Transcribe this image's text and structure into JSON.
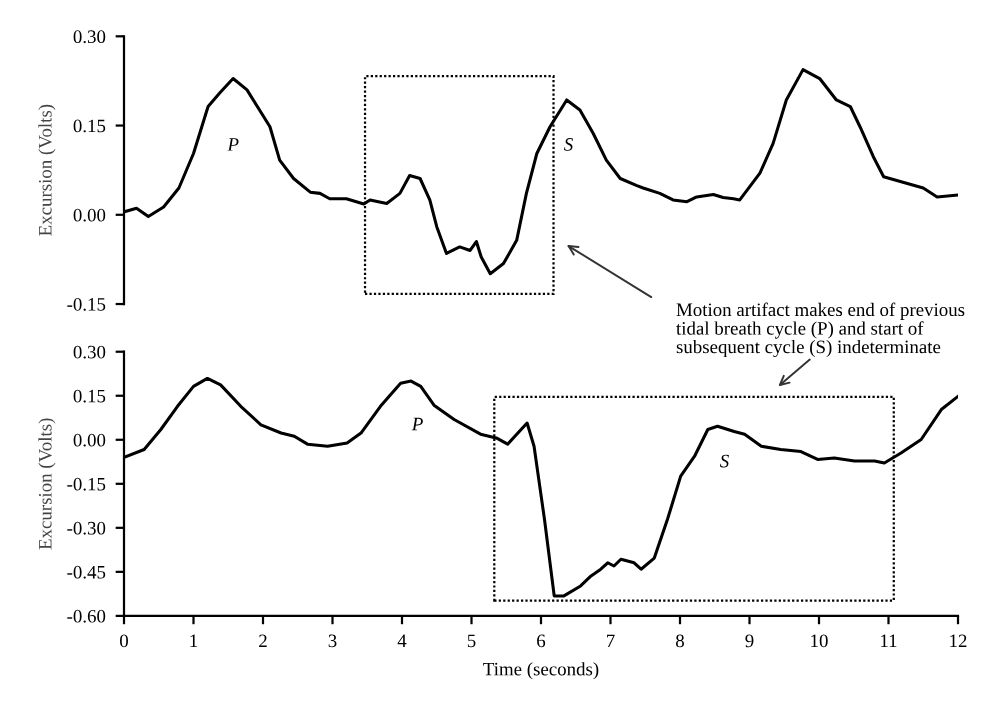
{
  "chart_data": [
    {
      "type": "line",
      "ylabel": "Excursion (Volts)",
      "xlim": [
        0,
        12
      ],
      "ylim": [
        -0.15,
        0.3
      ],
      "yticks": [
        {
          "value": -0.15,
          "label": "-0.15"
        },
        {
          "value": 0,
          "label": "0.00"
        },
        {
          "value": 0.15,
          "label": "0.15"
        },
        {
          "value": 0.3,
          "label": "0.30"
        }
      ],
      "tick_labels": "y",
      "grid": false,
      "marker": "none",
      "line_style": "solid",
      "annotations": [
        "P",
        "S",
        "Motion artifact makes end of previous tidal breath cycle (P) and start of subsequent cycle (S) indeterminate"
      ],
      "series": [
        {
          "color": "#000000",
          "x": [
            0,
            0.18,
            0.35,
            0.57,
            0.79,
            1.0,
            1.21,
            1.38,
            1.57,
            1.77,
            2.1,
            2.24,
            2.44,
            2.68,
            2.82,
            2.96,
            3.2,
            3.45,
            3.54,
            3.78,
            3.97,
            4.11,
            4.26,
            4.4,
            4.5,
            4.64,
            4.83,
            4.98,
            5.07,
            5.14,
            5.27,
            5.46,
            5.65,
            5.79,
            5.94,
            6.13,
            6.37,
            6.56,
            6.75,
            6.94,
            7.14,
            7.38,
            7.47,
            7.71,
            7.9,
            8.1,
            8.24,
            8.48,
            8.62,
            8.77,
            8.86,
            9.15,
            9.34,
            9.53,
            9.77,
            10.01,
            10.25,
            10.45,
            10.59,
            10.78,
            10.93,
            11.17,
            11.5,
            11.7,
            11.98
          ],
          "values": [
            0.005,
            0.011,
            -0.003,
            0.013,
            0.045,
            0.103,
            0.182,
            0.205,
            0.229,
            0.21,
            0.148,
            0.092,
            0.061,
            0.038,
            0.036,
            0.027,
            0.027,
            0.018,
            0.025,
            0.019,
            0.036,
            0.066,
            0.061,
            0.025,
            -0.02,
            -0.065,
            -0.054,
            -0.06,
            -0.045,
            -0.071,
            -0.099,
            -0.082,
            -0.043,
            0.036,
            0.103,
            0.148,
            0.193,
            0.176,
            0.137,
            0.092,
            0.061,
            0.049,
            0.045,
            0.036,
            0.025,
            0.022,
            0.03,
            0.034,
            0.029,
            0.027,
            0.025,
            0.07,
            0.12,
            0.193,
            0.244,
            0.229,
            0.193,
            0.182,
            0.148,
            0.098,
            0.064,
            0.056,
            0.045,
            0.03,
            0.033
          ]
        }
      ]
    },
    {
      "type": "line",
      "xlabel": "Time (seconds)",
      "ylabel": "Excursion (Volts)",
      "xlim": [
        0,
        12
      ],
      "ylim": [
        -0.6,
        0.3
      ],
      "xticks": [
        0,
        1,
        2,
        3,
        4,
        5,
        6,
        7,
        8,
        9,
        10,
        11,
        12
      ],
      "yticks": [
        {
          "value": -0.6,
          "label": "-0.60"
        },
        {
          "value": -0.45,
          "label": "-0.45"
        },
        {
          "value": -0.3,
          "label": "-0.30"
        },
        {
          "value": -0.15,
          "label": "-0.15"
        },
        {
          "value": 0,
          "label": "0.00"
        },
        {
          "value": 0.15,
          "label": "0.15"
        },
        {
          "value": 0.3,
          "label": "0.30"
        }
      ],
      "grid": false,
      "marker": "none",
      "line_style": "solid",
      "annotations": [
        "P",
        "S"
      ],
      "series": [
        {
          "color": "#000000",
          "x": [
            0,
            0.29,
            0.53,
            0.77,
            1.0,
            1.2,
            1.39,
            1.68,
            1.97,
            2.26,
            2.45,
            2.64,
            2.93,
            3.21,
            3.41,
            3.69,
            3.98,
            4.13,
            4.27,
            4.46,
            4.75,
            5.13,
            5.37,
            5.52,
            5.8,
            5.9,
            6.05,
            6.19,
            6.33,
            6.57,
            6.72,
            6.86,
            6.96,
            7.05,
            7.15,
            7.34,
            7.44,
            7.63,
            7.82,
            8.01,
            8.21,
            8.4,
            8.54,
            8.78,
            8.93,
            9.17,
            9.45,
            9.74,
            9.98,
            10.22,
            10.51,
            10.8,
            10.94,
            11.18,
            11.47,
            11.76,
            12.0
          ],
          "values": [
            -0.06,
            -0.033,
            0.035,
            0.114,
            0.182,
            0.209,
            0.187,
            0.114,
            0.051,
            0.023,
            0.012,
            -0.015,
            -0.022,
            -0.011,
            0.023,
            0.114,
            0.193,
            0.2,
            0.182,
            0.118,
            0.069,
            0.019,
            0.005,
            -0.015,
            0.057,
            -0.022,
            -0.271,
            -0.532,
            -0.532,
            -0.498,
            -0.464,
            -0.441,
            -0.419,
            -0.43,
            -0.407,
            -0.419,
            -0.441,
            -0.403,
            -0.271,
            -0.124,
            -0.056,
            0.035,
            0.046,
            0.028,
            0.019,
            -0.022,
            -0.033,
            -0.04,
            -0.067,
            -0.062,
            -0.072,
            -0.072,
            -0.079,
            -0.045,
            0.001,
            0.103,
            0.148
          ]
        }
      ]
    }
  ]
}
